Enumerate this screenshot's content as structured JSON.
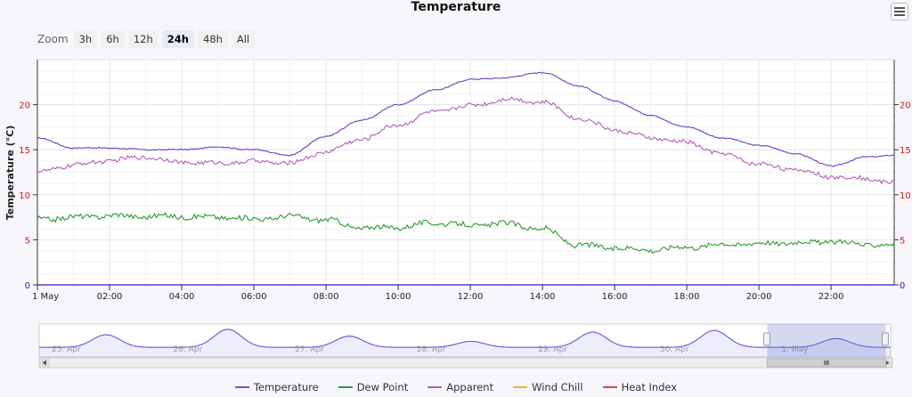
{
  "title": "Temperature",
  "zoom": {
    "label": "Zoom",
    "buttons": [
      "3h",
      "6h",
      "12h",
      "24h",
      "48h",
      "All"
    ],
    "selected": "24h"
  },
  "colors": {
    "temperature": "#6a3cc8",
    "temperature_light": "#7070e8",
    "apparent": "#b45db4",
    "dew_point": "#2c9a2c",
    "wind_chill": "#f0b030",
    "heat_index": "#f03c3c",
    "axis_accent": "#d01414",
    "axis_blue": "#2020c0"
  },
  "navigator": {
    "labels": [
      "25. Apr",
      "26. Apr",
      "27. Apr",
      "28. Apr",
      "29. Apr",
      "30. Apr",
      "1. May"
    ]
  },
  "legend": [
    {
      "key": "temperature",
      "label": "Temperature",
      "color": "#5a5ad8"
    },
    {
      "key": "dew_point",
      "label": "Dew Point",
      "color": "#2c9a2c"
    },
    {
      "key": "apparent",
      "label": "Apparent",
      "color": "#b45db4"
    },
    {
      "key": "wind_chill",
      "label": "Wind Chill",
      "color": "#f0b030"
    },
    {
      "key": "heat_index",
      "label": "Heat Index",
      "color": "#f03c3c"
    }
  ],
  "chart_data": {
    "type": "line",
    "ylabel": "Temperature (°C)",
    "ylim": [
      0,
      25
    ],
    "yticks": [
      0,
      5,
      10,
      15,
      20
    ],
    "xlim": [
      0,
      23.75
    ],
    "x_tick_hours": [
      0,
      2,
      4,
      6,
      8,
      10,
      12,
      14,
      16,
      18,
      20,
      22
    ],
    "x_tick_labels": [
      "1 May",
      "02:00",
      "04:00",
      "06:00",
      "08:00",
      "10:00",
      "12:00",
      "14:00",
      "16:00",
      "18:00",
      "20:00",
      "22:00"
    ],
    "grid": true,
    "series": [
      {
        "name": "Temperature",
        "x": [
          0,
          1,
          2,
          3,
          4,
          5,
          6,
          7,
          8,
          9,
          10,
          11,
          12,
          13,
          14,
          15,
          16,
          17,
          18,
          19,
          20,
          21,
          22,
          23,
          23.75
        ],
        "y": [
          16.3,
          15.2,
          15.2,
          15.0,
          15.0,
          15.3,
          15.0,
          14.4,
          16.5,
          18.3,
          20.0,
          21.6,
          22.8,
          23.0,
          23.6,
          22.1,
          20.4,
          18.8,
          17.5,
          16.3,
          15.5,
          14.6,
          13.2,
          14.2,
          14.4
        ]
      },
      {
        "name": "Apparent",
        "x": [
          0,
          1,
          2,
          3,
          4,
          5,
          6,
          7,
          8,
          9,
          10,
          11,
          12,
          13,
          14,
          15,
          16,
          17,
          18,
          19,
          20,
          21,
          22,
          23,
          23.75
        ],
        "y": [
          12.5,
          13.3,
          13.8,
          14.2,
          13.6,
          13.5,
          13.7,
          13.5,
          14.8,
          16.2,
          17.8,
          19.2,
          19.9,
          20.6,
          20.3,
          18.5,
          17.2,
          16.3,
          15.8,
          14.5,
          13.4,
          12.8,
          12.0,
          11.8,
          11.3
        ]
      },
      {
        "name": "Dew Point",
        "x": [
          0,
          1,
          2,
          3,
          4,
          5,
          6,
          7,
          8,
          9,
          10,
          11,
          12,
          13,
          14,
          15,
          16,
          17,
          18,
          19,
          20,
          21,
          22,
          23,
          23.75
        ],
        "y": [
          7.3,
          7.5,
          7.7,
          7.6,
          7.6,
          7.5,
          7.3,
          7.6,
          7.2,
          6.3,
          6.4,
          6.9,
          6.6,
          6.8,
          6.2,
          4.4,
          4.1,
          3.9,
          4.2,
          4.5,
          4.6,
          4.7,
          4.8,
          4.5,
          4.4
        ]
      }
    ]
  }
}
